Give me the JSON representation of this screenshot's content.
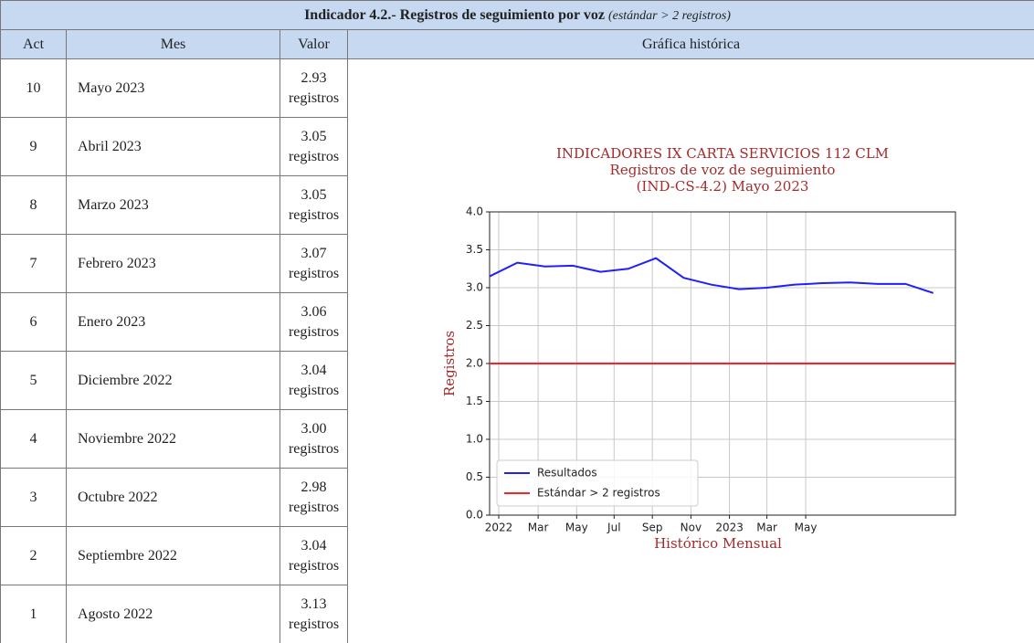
{
  "table": {
    "title": "Indicador 4.2.- Registros de seguimiento por voz",
    "subtitle": "(estándar > 2 registros)",
    "columns": [
      "Act",
      "Mes",
      "Valor",
      "Gráfica histórica"
    ],
    "rows": [
      [
        "10",
        "Mayo 2023",
        "2.93 registros"
      ],
      [
        "9",
        "Abril 2023",
        "3.05 registros"
      ],
      [
        "8",
        "Marzo 2023",
        "3.05 registros"
      ],
      [
        "7",
        "Febrero 2023",
        "3.07 registros"
      ],
      [
        "6",
        "Enero 2023",
        "3.06 registros"
      ],
      [
        "5",
        "Diciembre 2022",
        "3.04 registros"
      ],
      [
        "4",
        "Noviembre 2022",
        "3.00 registros"
      ],
      [
        "3",
        "Octubre 2022",
        "2.98 registros"
      ],
      [
        "2",
        "Septiembre 2022",
        "3.04 registros"
      ],
      [
        "1",
        "Agosto 2022",
        "3.13 registros"
      ]
    ]
  },
  "chart_data": {
    "type": "line",
    "title": [
      "INDICADORES IX CARTA SERVICIOS 112 CLM",
      "Registros de voz de seguimiento",
      "(IND-CS-4.2) Mayo 2023"
    ],
    "ylabel": "Registros",
    "xlabel": "Histórico Mensual",
    "xlim": [
      0,
      16.8
    ],
    "xticks": [
      {
        "value": 0.33,
        "label": "2022"
      },
      {
        "value": 1.75,
        "label": "Mar"
      },
      {
        "value": 3.14,
        "label": "May"
      },
      {
        "value": 4.49,
        "label": "Jul"
      },
      {
        "value": 5.87,
        "label": "Sep"
      },
      {
        "value": 7.26,
        "label": "Nov"
      },
      {
        "value": 8.65,
        "label": "2023"
      },
      {
        "value": 10.0,
        "label": "Mar"
      },
      {
        "value": 11.4,
        "label": "May"
      }
    ],
    "ylim": [
      0,
      4
    ],
    "yticks": [
      {
        "value": 0,
        "label": "0.0"
      },
      {
        "value": 0.5,
        "label": "0.5"
      },
      {
        "value": 1,
        "label": "1.0"
      },
      {
        "value": 1.5,
        "label": "1.5"
      },
      {
        "value": 2,
        "label": "2.0"
      },
      {
        "value": 2.5,
        "label": "2.5"
      },
      {
        "value": 3,
        "label": "3.0"
      },
      {
        "value": 3.5,
        "label": "3.5"
      },
      {
        "value": 4,
        "label": "4.0"
      }
    ],
    "grid": true,
    "legend": "lower left",
    "series": [
      {
        "name": "Resultados",
        "color": "#1f1fff",
        "x": [
          0,
          1,
          2,
          3,
          4,
          5,
          6,
          7,
          8,
          9,
          10,
          11,
          12,
          13,
          14,
          15,
          16
        ],
        "values": [
          3.15,
          3.33,
          3.28,
          3.29,
          3.21,
          3.25,
          3.39,
          3.13,
          3.04,
          2.98,
          3.0,
          3.04,
          3.06,
          3.07,
          3.05,
          3.05,
          2.93
        ]
      }
    ],
    "hline": {
      "name": "Estándar > 2 registros",
      "color": "#ff2020",
      "value": 2
    }
  }
}
